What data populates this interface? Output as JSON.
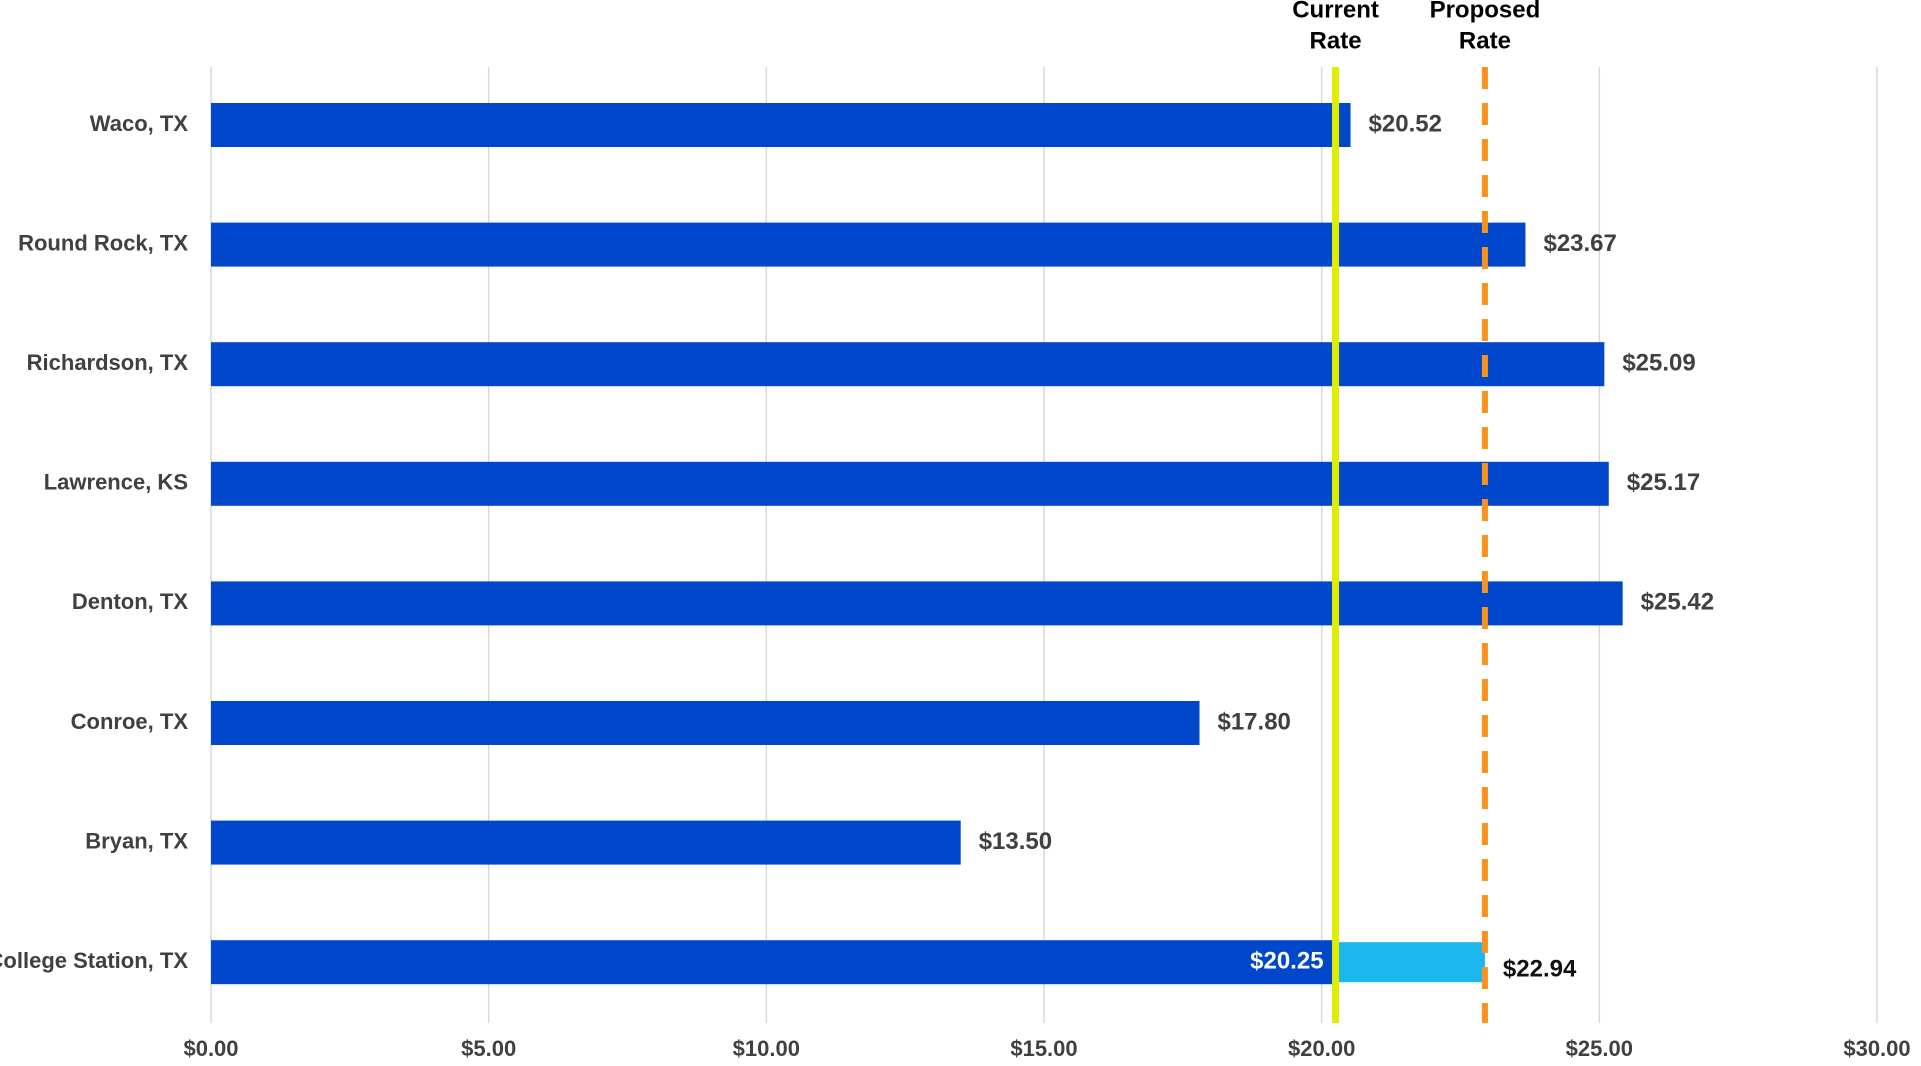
{
  "chart_data": {
    "type": "bar",
    "orientation": "horizontal",
    "categories": [
      "Waco, TX",
      "Round Rock, TX",
      "Richardson, TX",
      "Lawrence, KS",
      "Denton, TX",
      "Conroe, TX",
      "Bryan, TX",
      "College Station, TX"
    ],
    "series": [
      {
        "color": "#0047cc",
        "label_color": "#404040",
        "last_label_color": "#ffffff",
        "values": [
          20.52,
          23.67,
          25.09,
          25.17,
          25.42,
          17.8,
          13.5,
          20.25
        ],
        "value_labels": [
          "$20.52",
          "$23.67",
          "$25.09",
          "$25.17",
          "$25.42",
          "$17.80",
          "$13.50",
          "$20.25"
        ]
      },
      {
        "color": "#1ab8ee",
        "label_color": "#111111",
        "overlay": true,
        "values": [
          null,
          null,
          null,
          null,
          null,
          null,
          null,
          22.94
        ],
        "value_labels": [
          null,
          null,
          null,
          null,
          null,
          null,
          null,
          "$22.94"
        ]
      }
    ],
    "xlim": [
      0,
      30
    ],
    "xticks": [
      {
        "value": 0,
        "label": "$0.00"
      },
      {
        "value": 5,
        "label": "$5.00"
      },
      {
        "value": 10,
        "label": "$10.00"
      },
      {
        "value": 15,
        "label": "$15.00"
      },
      {
        "value": 20,
        "label": "$20.00"
      },
      {
        "value": 25,
        "label": "$25.00"
      },
      {
        "value": 30,
        "label": "$30.00"
      }
    ],
    "grid": true,
    "reference_lines": [
      {
        "label_lines": [
          "Current",
          "Rate"
        ],
        "value": 20.25,
        "color": "#dfee00",
        "dashed": false
      },
      {
        "label_lines": [
          "Proposed",
          "Rate"
        ],
        "value": 22.94,
        "color": "#f7931e",
        "dashed": true
      }
    ]
  }
}
